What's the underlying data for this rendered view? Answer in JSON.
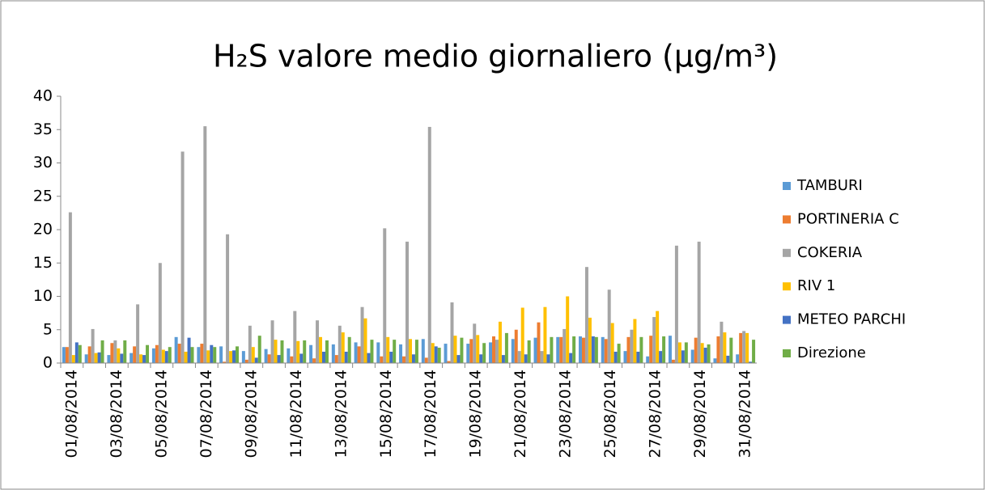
{
  "chart_data": {
    "type": "bar",
    "title": "H₂S valore medio giornaliero (µg/m³)",
    "categories": [
      "01/08/2014",
      null,
      "03/08/2014",
      null,
      "05/08/2014",
      null,
      "07/08/2014",
      null,
      "09/08/2014",
      null,
      "11/08/2014",
      null,
      "13/08/2014",
      null,
      "15/08/2014",
      null,
      "17/08/2014",
      null,
      "19/08/2014",
      null,
      "21/08/2014",
      null,
      "23/08/2014",
      null,
      "25/08/2014",
      null,
      "27/08/2014",
      null,
      "29/08/2014",
      null,
      "31/08/2014"
    ],
    "series": [
      {
        "name": "TAMBURI",
        "color": "#5b9bd5",
        "values": [
          2.4,
          1.3,
          1.2,
          1.5,
          2.2,
          3.9,
          2.4,
          2.5,
          1.8,
          2.1,
          2.2,
          2.7,
          2.8,
          3.1,
          3.1,
          2.8,
          3.6,
          2.9,
          2.9,
          3.1,
          3.6,
          3.8,
          3.9,
          4.0,
          3.9,
          1.8,
          1.0,
          4.1,
          2.0,
          0.7,
          1.3
        ]
      },
      {
        "name": "PORTINERIA C",
        "color": "#ed7d31",
        "values": [
          2.4,
          2.5,
          3.0,
          2.5,
          2.7,
          2.9,
          2.9,
          0.2,
          0.5,
          1.3,
          1.0,
          0.7,
          1.2,
          2.5,
          1.0,
          1.0,
          0.8,
          0.3,
          3.6,
          4.0,
          5.0,
          6.1,
          3.9,
          3.8,
          3.6,
          3.9,
          4.1,
          0.5,
          3.8,
          4.0,
          4.5
        ]
      },
      {
        "name": "COKERIA",
        "color": "#a5a5a5",
        "values": [
          22.6,
          5.1,
          3.4,
          8.8,
          15.0,
          31.7,
          35.5,
          19.3,
          5.6,
          6.4,
          7.8,
          6.4,
          5.6,
          8.4,
          20.2,
          18.2,
          35.4,
          9.1,
          5.9,
          3.5,
          1.8,
          1.8,
          5.1,
          14.4,
          11.0,
          5.0,
          6.9,
          17.6,
          18.2,
          6.2,
          4.8
        ]
      },
      {
        "name": "RIV 1",
        "color": "#ffc000",
        "values": [
          1.2,
          1.5,
          2.2,
          1.3,
          2.0,
          1.7,
          1.9,
          1.8,
          2.4,
          3.5,
          3.3,
          3.9,
          4.6,
          6.7,
          3.9,
          3.6,
          3.0,
          4.1,
          4.2,
          6.2,
          8.3,
          8.4,
          10.0,
          6.8,
          6.0,
          6.6,
          7.8,
          3.1,
          3.0,
          4.6,
          4.5
        ]
      },
      {
        "name": "METEO PARCHI",
        "color": "#4472c4",
        "values": [
          3.1,
          1.6,
          1.4,
          1.2,
          1.8,
          3.8,
          2.7,
          1.9,
          0.8,
          1.2,
          1.4,
          1.7,
          1.7,
          1.5,
          1.7,
          1.3,
          2.5,
          1.2,
          1.3,
          1.2,
          1.3,
          1.3,
          1.5,
          4.0,
          1.7,
          1.7,
          1.8,
          1.9,
          2.3,
          1.1,
          0.2
        ]
      },
      {
        "name": "Direzione",
        "color": "#70ad47",
        "values": [
          2.7,
          3.4,
          3.4,
          2.7,
          2.4,
          2.4,
          2.4,
          2.5,
          4.1,
          3.4,
          3.4,
          3.4,
          3.9,
          3.5,
          3.5,
          3.5,
          2.3,
          3.8,
          3.0,
          4.5,
          3.4,
          3.9,
          4.0,
          3.9,
          2.9,
          3.9,
          4.0,
          3.1,
          2.8,
          3.8,
          3.5
        ]
      }
    ],
    "ylim": [
      0,
      40
    ],
    "yticks": [
      0,
      5,
      10,
      15,
      20,
      25,
      30,
      35,
      40
    ],
    "grid": false
  }
}
